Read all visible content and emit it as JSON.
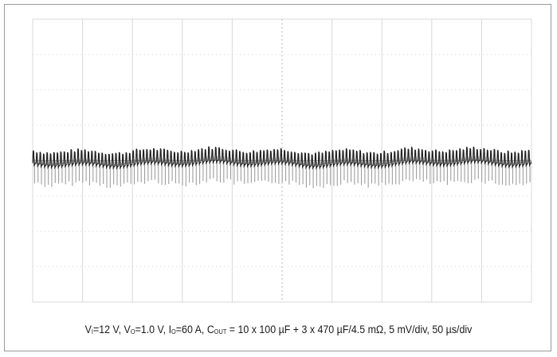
{
  "chart_data": {
    "type": "line",
    "title": "",
    "xlabel": "",
    "ylabel": "",
    "divisions": {
      "x": 10,
      "y": 8
    },
    "time_per_div": "50 µs/div",
    "volts_per_div": "5 mV/div",
    "x_range_us": [
      0,
      500
    ],
    "y_range_mv": [
      -20,
      20
    ],
    "grid": true,
    "series": [
      {
        "trace_color": "#1f1f1f",
        "ripple_frequency_khz": 290,
        "offset_mv": 0,
        "peak_to_peak_mv": 4,
        "envelope_top_mv": 1.2,
        "envelope_bottom_mv": -2.8
      }
    ]
  },
  "caption": {
    "vi_label": "V",
    "vi_sub": "I",
    "vi_value": "=12 V, ",
    "vo_label": "V",
    "vo_sub": "O",
    "vo_value": "=1.0 V, ",
    "io_label": "I",
    "io_sub": "O",
    "io_value": "=60 A, ",
    "cout_label": "C",
    "cout_sub": "OUT",
    "cout_value": " = 10 x 100 µF + 3 x 470 µF/4.5 mΩ, 5 mV/div, 50 µs/div"
  },
  "colors": {
    "grid_major": "#d9d9d9",
    "grid_minor": "#c4c4c4",
    "trace_dark": "#1f1f1f",
    "trace_light": "#9e9e9e",
    "border": "#9a9a9a"
  }
}
